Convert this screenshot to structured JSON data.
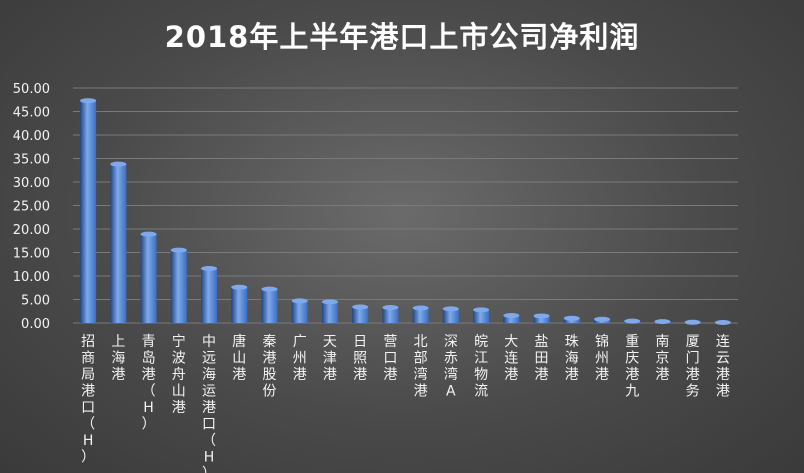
{
  "chart_data": {
    "type": "bar",
    "title": "2018年上半年港口上市公司净利润",
    "xlabel": "",
    "ylabel": "",
    "ylim": [
      0,
      50
    ],
    "yticks": [
      "50.00",
      "45.00",
      "40.00",
      "35.00",
      "30.00",
      "25.00",
      "20.00",
      "15.00",
      "10.00",
      "5.00",
      "0.00"
    ],
    "grid": true,
    "legend": "none",
    "categories": [
      "招商局港口（H）",
      "上海港",
      "青岛港（H）",
      "宁波舟山港",
      "中远海运港口（H）",
      "唐山港",
      "秦港股份",
      "广州港",
      "天津港",
      "日照港",
      "营口港",
      "北部湾港",
      "深赤湾A",
      "皖江物流",
      "大连港",
      "盐田港",
      "珠海港",
      "锦州港",
      "重庆港九",
      "南京港",
      "厦门港务",
      "连云港港"
    ],
    "values": [
      47.3,
      33.8,
      18.9,
      15.5,
      11.6,
      7.6,
      7.2,
      4.7,
      4.5,
      3.4,
      3.3,
      3.2,
      3.0,
      2.8,
      1.6,
      1.5,
      1.0,
      0.8,
      0.4,
      0.3,
      0.15,
      0.1
    ],
    "colors": {
      "bar": "#3b6fc0",
      "bar_light": "#7fa9ea",
      "bar_dark": "#1f4585",
      "grid": "#7a7a7a",
      "text": "#f2f2f2"
    }
  }
}
